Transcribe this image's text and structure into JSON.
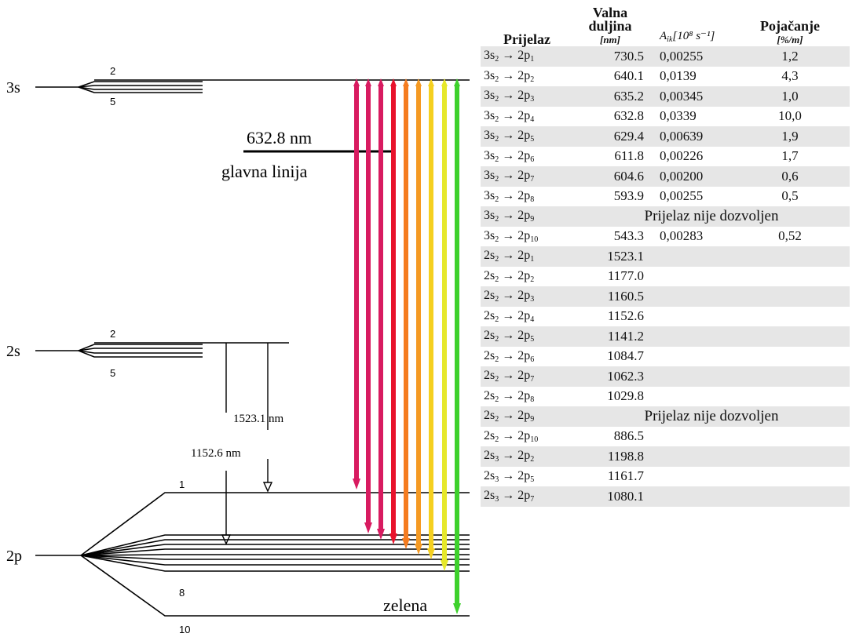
{
  "levels": [
    {
      "label": "3s",
      "sub_top": "2",
      "sub_bottom": "5"
    },
    {
      "label": "2s",
      "sub_top": "2",
      "sub_bottom": "5"
    },
    {
      "label": "2p",
      "sub_top": "1",
      "sub_mid": "8",
      "sub_bottom": "10"
    }
  ],
  "annotations": {
    "main_wavelength": "632.8 nm",
    "main_line_label": "glavna linija",
    "ir_line_1": "1523.1 nm",
    "ir_line_2": "1152.6 nm",
    "green_label": "zelena"
  },
  "arrows": [
    {
      "color": "#d81b60"
    },
    {
      "color": "#d81b60"
    },
    {
      "color": "#d81b60"
    },
    {
      "color": "#e8132c"
    },
    {
      "color": "#f57c1f"
    },
    {
      "color": "#f59a23"
    },
    {
      "color": "#f5d020"
    },
    {
      "color": "#e6e82a"
    },
    {
      "color": "#3ed12c"
    }
  ],
  "table": {
    "headers": {
      "transition": "Prijelaz",
      "wavelength": "Valna duljina",
      "wavelength_unit": "[nm]",
      "coef": "A",
      "coef_sub": "ik",
      "coef_unit": "[10⁸ s⁻¹]",
      "gain": "Pojačanje",
      "gain_unit": "[%/m]"
    },
    "rows": [
      {
        "from": "3s",
        "from_sub": "2",
        "to": "2p",
        "to_sub": "1",
        "wl": "730.5",
        "a": "0,00255",
        "g": "1,2"
      },
      {
        "from": "3s",
        "from_sub": "2",
        "to": "2p",
        "to_sub": "2",
        "wl": "640.1",
        "a": "0,0139",
        "g": "4,3"
      },
      {
        "from": "3s",
        "from_sub": "2",
        "to": "2p",
        "to_sub": "3",
        "wl": "635.2",
        "a": "0,00345",
        "g": "1,0"
      },
      {
        "from": "3s",
        "from_sub": "2",
        "to": "2p",
        "to_sub": "4",
        "wl": "632.8",
        "a": "0,0339",
        "g": "10,0"
      },
      {
        "from": "3s",
        "from_sub": "2",
        "to": "2p",
        "to_sub": "5",
        "wl": "629.4",
        "a": "0,00639",
        "g": "1,9"
      },
      {
        "from": "3s",
        "from_sub": "2",
        "to": "2p",
        "to_sub": "6",
        "wl": "611.8",
        "a": "0,00226",
        "g": "1,7"
      },
      {
        "from": "3s",
        "from_sub": "2",
        "to": "2p",
        "to_sub": "7",
        "wl": "604.6",
        "a": "0,00200",
        "g": "0,6"
      },
      {
        "from": "3s",
        "from_sub": "2",
        "to": "2p",
        "to_sub": "8",
        "wl": "593.9",
        "a": "0,00255",
        "g": "0,5"
      },
      {
        "from": "3s",
        "from_sub": "2",
        "to": "2p",
        "to_sub": "9",
        "note": "Prijelaz nije dozvoljen"
      },
      {
        "from": "3s",
        "from_sub": "2",
        "to": "2p",
        "to_sub": "10",
        "wl": "543.3",
        "a": "0,00283",
        "g": "0,52"
      },
      {
        "from": "2s",
        "from_sub": "2",
        "to": "2p",
        "to_sub": "1",
        "wl": "1523.1",
        "a": "",
        "g": ""
      },
      {
        "from": "2s",
        "from_sub": "2",
        "to": "2p",
        "to_sub": "2",
        "wl": "1177.0",
        "a": "",
        "g": ""
      },
      {
        "from": "2s",
        "from_sub": "2",
        "to": "2p",
        "to_sub": "3",
        "wl": "1160.5",
        "a": "",
        "g": ""
      },
      {
        "from": "2s",
        "from_sub": "2",
        "to": "2p",
        "to_sub": "4",
        "wl": "1152.6",
        "a": "",
        "g": ""
      },
      {
        "from": "2s",
        "from_sub": "2",
        "to": "2p",
        "to_sub": "5",
        "wl": "1141.2",
        "a": "",
        "g": ""
      },
      {
        "from": "2s",
        "from_sub": "2",
        "to": "2p",
        "to_sub": "6",
        "wl": "1084.7",
        "a": "",
        "g": ""
      },
      {
        "from": "2s",
        "from_sub": "2",
        "to": "2p",
        "to_sub": "7",
        "wl": "1062.3",
        "a": "",
        "g": ""
      },
      {
        "from": "2s",
        "from_sub": "2",
        "to": "2p",
        "to_sub": "8",
        "wl": "1029.8",
        "a": "",
        "g": ""
      },
      {
        "from": "2s",
        "from_sub": "2",
        "to": "2p",
        "to_sub": "9",
        "note": "Prijelaz nije dozvoljen"
      },
      {
        "from": "2s",
        "from_sub": "2",
        "to": "2p",
        "to_sub": "10",
        "wl": "886.5",
        "a": "",
        "g": ""
      },
      {
        "from": "2s",
        "from_sub": "3",
        "to": "2p",
        "to_sub": "2",
        "wl": "1198.8",
        "a": "",
        "g": ""
      },
      {
        "from": "2s",
        "from_sub": "3",
        "to": "2p",
        "to_sub": "5",
        "wl": "1161.7",
        "a": "",
        "g": ""
      },
      {
        "from": "2s",
        "from_sub": "3",
        "to": "2p",
        "to_sub": "7",
        "wl": "1080.1",
        "a": "",
        "g": ""
      }
    ]
  }
}
